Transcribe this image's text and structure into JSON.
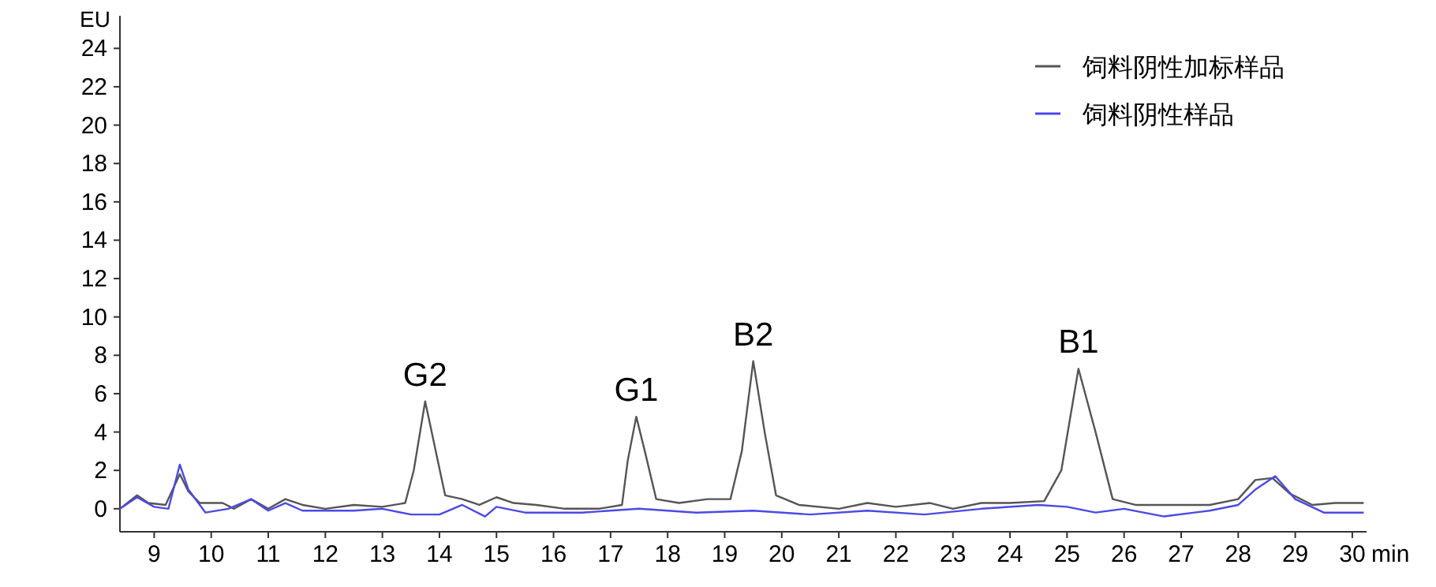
{
  "chart_data": {
    "type": "line",
    "xlabel": "min",
    "ylabel": "EU",
    "xlim": [
      8.4,
      30.25
    ],
    "ylim": [
      -1.2,
      25.7
    ],
    "xticks": [
      9,
      10,
      11,
      12,
      13,
      14,
      15,
      16,
      17,
      18,
      19,
      20,
      21,
      22,
      23,
      24,
      25,
      26,
      27,
      28,
      29,
      30
    ],
    "yticks": [
      0,
      2,
      4,
      6,
      8,
      10,
      12,
      14,
      16,
      18,
      20,
      22,
      24
    ],
    "legend": "top right",
    "grid": false,
    "series": [
      {
        "name": "饲料阴性加标样品",
        "color": "#555555",
        "x": [
          8.4,
          8.7,
          8.9,
          9.2,
          9.45,
          9.6,
          9.8,
          10.2,
          10.4,
          10.7,
          11.0,
          11.3,
          11.6,
          12.0,
          12.5,
          13.0,
          13.4,
          13.55,
          13.75,
          13.9,
          14.1,
          14.4,
          14.7,
          15.0,
          15.3,
          15.7,
          16.2,
          16.8,
          17.2,
          17.3,
          17.45,
          17.6,
          17.8,
          18.2,
          18.7,
          19.1,
          19.3,
          19.5,
          19.7,
          19.9,
          20.3,
          21.0,
          21.5,
          22.0,
          22.6,
          23.0,
          23.5,
          24.0,
          24.6,
          24.9,
          25.2,
          25.5,
          25.8,
          26.2,
          26.8,
          27.5,
          28.0,
          28.3,
          28.6,
          28.9,
          29.3,
          29.7,
          30.2
        ],
        "values": [
          0.0,
          0.7,
          0.3,
          0.2,
          1.8,
          0.9,
          0.3,
          0.3,
          0.0,
          0.5,
          0.0,
          0.5,
          0.2,
          0.0,
          0.2,
          0.1,
          0.3,
          2.0,
          5.6,
          3.5,
          0.7,
          0.5,
          0.2,
          0.6,
          0.3,
          0.2,
          0.0,
          0.0,
          0.2,
          2.5,
          4.8,
          3.0,
          0.5,
          0.3,
          0.5,
          0.5,
          3.0,
          7.7,
          4.0,
          0.7,
          0.2,
          0.0,
          0.3,
          0.1,
          0.3,
          0.0,
          0.3,
          0.3,
          0.4,
          2.0,
          7.3,
          4.0,
          0.5,
          0.2,
          0.2,
          0.2,
          0.5,
          1.5,
          1.6,
          0.8,
          0.2,
          0.3,
          0.3
        ]
      },
      {
        "name": "饲料阴性样品",
        "color": "#4a4ae6",
        "x": [
          8.4,
          8.7,
          9.0,
          9.25,
          9.45,
          9.6,
          9.9,
          10.3,
          10.7,
          11.0,
          11.3,
          11.6,
          12.5,
          13.0,
          13.5,
          14.0,
          14.4,
          14.8,
          15.0,
          15.5,
          16.5,
          17.5,
          18.5,
          19.5,
          20.5,
          21.5,
          22.5,
          23.5,
          24.5,
          25.0,
          25.5,
          26.0,
          26.7,
          27.5,
          28.0,
          28.3,
          28.65,
          29.0,
          29.5,
          30.2
        ],
        "values": [
          0.0,
          0.6,
          0.1,
          0.0,
          2.3,
          1.0,
          -0.2,
          0.0,
          0.5,
          -0.1,
          0.3,
          -0.1,
          -0.1,
          0.0,
          -0.3,
          -0.3,
          0.2,
          -0.4,
          0.1,
          -0.2,
          -0.2,
          0.0,
          -0.2,
          -0.1,
          -0.3,
          -0.1,
          -0.3,
          0.0,
          0.2,
          0.1,
          -0.2,
          0.0,
          -0.4,
          -0.1,
          0.2,
          1.0,
          1.7,
          0.5,
          -0.2,
          -0.2
        ]
      }
    ],
    "annotations": [
      {
        "text": "G2",
        "x": 13.75,
        "y": 5.6
      },
      {
        "text": "G1",
        "x": 17.45,
        "y": 4.8
      },
      {
        "text": "B2",
        "x": 19.5,
        "y": 7.7
      },
      {
        "text": "B1",
        "x": 25.2,
        "y": 7.3
      }
    ]
  }
}
